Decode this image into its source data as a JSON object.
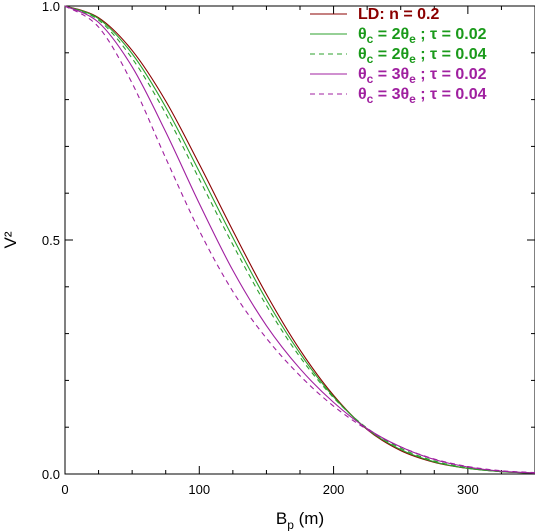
{
  "chart_data": {
    "type": "line",
    "xlabel_main": "B",
    "xlabel_sub": "p",
    "xlabel_unit": " (m)",
    "ylabel": "V²",
    "xlim": [
      0,
      350
    ],
    "ylim": [
      0,
      1.0
    ],
    "x_ticks": [
      0,
      100,
      200,
      300
    ],
    "x_tick_labels": [
      "0",
      "100",
      "200",
      "300"
    ],
    "y_ticks": [
      0,
      0.5,
      1.0
    ],
    "y_tick_labels": [
      "0.0",
      "0.5",
      "1.0"
    ],
    "grid": false,
    "legend_position": "top-right",
    "x": [
      0,
      25,
      50,
      75,
      100,
      125,
      150,
      175,
      200,
      225,
      250,
      275,
      300,
      325,
      350
    ],
    "series": [
      {
        "name_parts": [
          {
            "t": "LD: n = 0.2"
          }
        ],
        "color": "#8b0000",
        "dash": "solid",
        "values": [
          1.0,
          0.975,
          0.905,
          0.797,
          0.662,
          0.52,
          0.384,
          0.265,
          0.168,
          0.095,
          0.05,
          0.025,
          0.012,
          0.005,
          0.002
        ]
      },
      {
        "name_parts": [
          {
            "t": "θ"
          },
          {
            "t": "c",
            "sub": true
          },
          {
            "t": " = 2θ"
          },
          {
            "t": "e",
            "sub": true
          },
          {
            "t": " ; τ = 0.02"
          }
        ],
        "color": "#2ca02c",
        "dash": "solid",
        "values": [
          1.0,
          0.973,
          0.898,
          0.784,
          0.646,
          0.505,
          0.372,
          0.258,
          0.165,
          0.096,
          0.052,
          0.026,
          0.012,
          0.005,
          0.002
        ]
      },
      {
        "name_parts": [
          {
            "t": "θ"
          },
          {
            "t": "c",
            "sub": true
          },
          {
            "t": " = 2θ"
          },
          {
            "t": "e",
            "sub": true
          },
          {
            "t": " ; τ = 0.04"
          }
        ],
        "color": "#2ca02c",
        "dash": "dashed",
        "values": [
          1.0,
          0.97,
          0.888,
          0.77,
          0.63,
          0.49,
          0.36,
          0.25,
          0.163,
          0.098,
          0.055,
          0.028,
          0.013,
          0.005,
          0.002
        ]
      },
      {
        "name_parts": [
          {
            "t": "θ"
          },
          {
            "t": "c",
            "sub": true
          },
          {
            "t": " = 3θ"
          },
          {
            "t": "e",
            "sub": true
          },
          {
            "t": " ; τ = 0.02"
          }
        ],
        "color": "#a020a0",
        "dash": "solid",
        "values": [
          1.0,
          0.965,
          0.87,
          0.731,
          0.578,
          0.435,
          0.317,
          0.225,
          0.153,
          0.097,
          0.058,
          0.031,
          0.015,
          0.006,
          0.002
        ]
      },
      {
        "name_parts": [
          {
            "t": "θ"
          },
          {
            "t": "c",
            "sub": true
          },
          {
            "t": " = 3θ"
          },
          {
            "t": "e",
            "sub": true
          },
          {
            "t": " ; τ = 0.04"
          }
        ],
        "color": "#a020a0",
        "dash": "dashed",
        "values": [
          1.0,
          0.955,
          0.835,
          0.675,
          0.52,
          0.39,
          0.29,
          0.21,
          0.145,
          0.095,
          0.058,
          0.032,
          0.016,
          0.007,
          0.003
        ]
      }
    ]
  }
}
